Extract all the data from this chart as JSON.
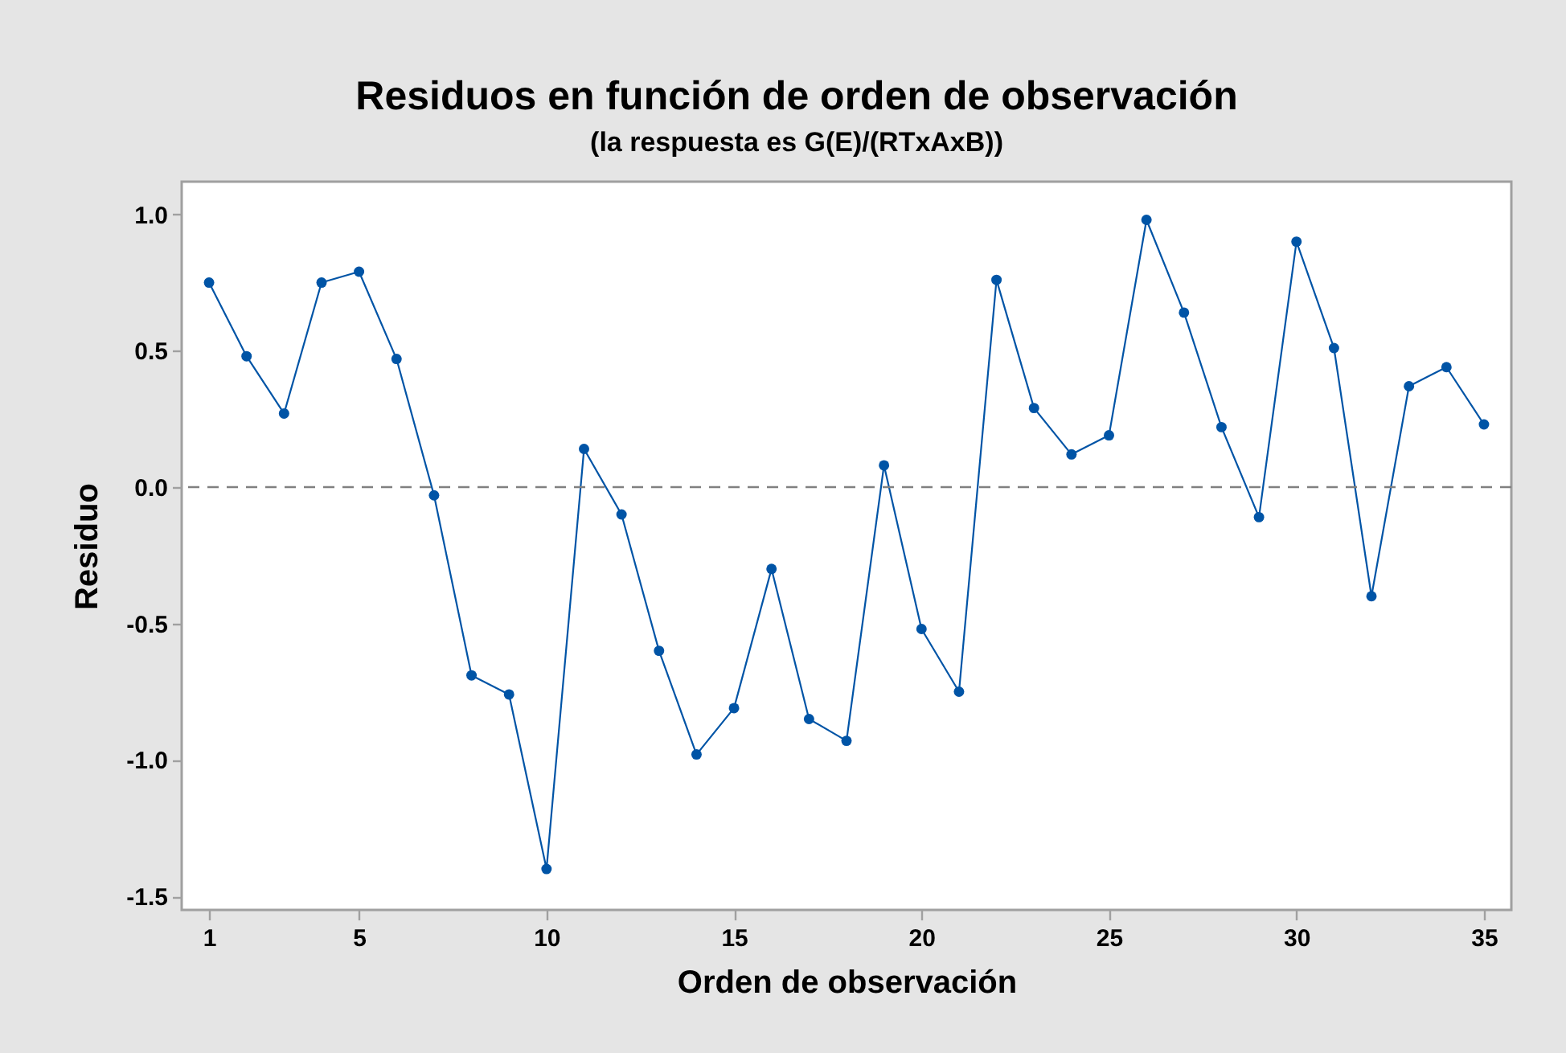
{
  "chart_data": {
    "type": "line",
    "title": "Residuos en función de orden de observación",
    "subtitle": "(la respuesta es G(E)/(RTxAxB))",
    "xlabel": "Orden de observación",
    "ylabel": "Residuo",
    "x": [
      1,
      2,
      3,
      4,
      5,
      6,
      7,
      8,
      9,
      10,
      11,
      12,
      13,
      14,
      15,
      16,
      17,
      18,
      19,
      20,
      21,
      22,
      23,
      24,
      25,
      26,
      27,
      28,
      29,
      30,
      31,
      32,
      33,
      34,
      35
    ],
    "series": [
      {
        "color": "#0054a6",
        "values": [
          0.75,
          0.48,
          0.27,
          0.75,
          0.79,
          0.47,
          -0.03,
          -0.69,
          -0.76,
          -1.4,
          0.14,
          -0.1,
          -0.6,
          -0.98,
          -0.81,
          -0.3,
          -0.85,
          -0.93,
          0.08,
          -0.52,
          -0.75,
          0.76,
          0.29,
          0.12,
          0.19,
          0.98,
          0.64,
          0.22,
          -0.11,
          0.9,
          0.51,
          -0.4,
          0.37,
          0.44,
          0.23
        ]
      }
    ],
    "xlim": [
      0.27,
      35.73
    ],
    "xticks": [
      1,
      5,
      10,
      15,
      20,
      25,
      30,
      35
    ],
    "ylim": [
      -1.55,
      1.12
    ],
    "yticks": [
      -1.5,
      {
        "value": -1,
        "label": "-1.0"
      },
      -0.5,
      {
        "value": 0,
        "label": "0.0"
      },
      0.5,
      {
        "value": 1,
        "label": "1.0"
      }
    ],
    "marker": "circle",
    "line_style": "solid",
    "grid": false,
    "ref_lines": [
      {
        "axis": "y",
        "value": 0,
        "color": "#808080",
        "line_style": "dashed"
      }
    ]
  }
}
